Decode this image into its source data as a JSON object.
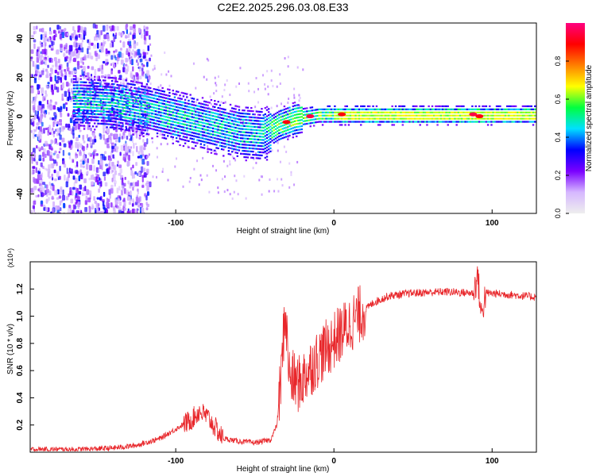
{
  "figure": {
    "title": "C2E2.2025.296.03.08.E33"
  },
  "chart_data": [
    {
      "type": "heatmap",
      "title": "C2E2.2025.296.03.08.E33",
      "xlabel": "Height of straight line (km)",
      "ylabel": "Frequency (Hz)",
      "xlim": [
        -192,
        128
      ],
      "ylim": [
        -50,
        48
      ],
      "x_ticks": [
        -100,
        0,
        100
      ],
      "y_ticks": [
        -40,
        -20,
        0,
        20,
        40
      ],
      "colorbar": {
        "label": "Normalized spectral amplitude",
        "range": [
          0,
          1
        ],
        "ticks": [
          0.0,
          0.2,
          0.4,
          0.6,
          0.8
        ],
        "tick_labels": [
          "0.0",
          "0.2",
          "0.4",
          "0.6",
          "0.8"
        ],
        "colormap": [
          "#eeeeee",
          "#d6b8ff",
          "#7a00ff",
          "#0000ff",
          "#00e0ff",
          "#00ff40",
          "#ffff00",
          "#ff7f00",
          "#ff0000",
          "#ff0080"
        ]
      },
      "ridge_center_hz": [
        [
          -160,
          8
        ],
        [
          -140,
          7
        ],
        [
          -120,
          4
        ],
        [
          -100,
          0
        ],
        [
          -80,
          -4
        ],
        [
          -60,
          -8
        ],
        [
          -45,
          -9
        ],
        [
          -35,
          -4
        ],
        [
          -25,
          -1
        ],
        [
          -10,
          1
        ],
        [
          0,
          1
        ],
        [
          20,
          1
        ],
        [
          60,
          1
        ],
        [
          100,
          1
        ],
        [
          128,
          1
        ]
      ],
      "ridge_peaks": [
        {
          "x": -30,
          "y": -3,
          "amplitude": 0.9
        },
        {
          "x": -15,
          "y": 0,
          "amplitude": 0.95
        },
        {
          "x": 5,
          "y": 1,
          "amplitude": 0.9
        },
        {
          "x": 88,
          "y": 1,
          "amplitude": 0.95
        },
        {
          "x": 92,
          "y": 0,
          "amplitude": 0.9
        }
      ]
    },
    {
      "type": "line",
      "xlabel": "Height of straight line (km)",
      "ylabel": "SNR (10 * v/v)",
      "scale_label": "(x10⁴)",
      "xlim": [
        -192,
        128
      ],
      "ylim": [
        0,
        1.4
      ],
      "x_ticks": [
        -100,
        0,
        100
      ],
      "y_ticks": [
        0.2,
        0.4,
        0.6,
        0.8,
        1.0,
        1.2
      ],
      "y_tick_labels": [
        "0.2",
        "0.4",
        "0.6",
        "0.8",
        "1.0",
        "1.2"
      ],
      "series": [
        {
          "name": "SNR",
          "color": "#e8262a",
          "envelope": [
            [
              -192,
              0.02
            ],
            [
              -160,
              0.02
            ],
            [
              -140,
              0.03
            ],
            [
              -125,
              0.05
            ],
            [
              -110,
              0.1
            ],
            [
              -100,
              0.17
            ],
            [
              -90,
              0.24
            ],
            [
              -85,
              0.3
            ],
            [
              -80,
              0.26
            ],
            [
              -75,
              0.18
            ],
            [
              -70,
              0.1
            ],
            [
              -60,
              0.08
            ],
            [
              -50,
              0.07
            ],
            [
              -40,
              0.09
            ],
            [
              -36,
              0.2
            ],
            [
              -33,
              0.6
            ],
            [
              -31,
              1.05
            ],
            [
              -28,
              0.55
            ],
            [
              -22,
              0.5
            ],
            [
              -15,
              0.62
            ],
            [
              -8,
              0.72
            ],
            [
              0,
              0.82
            ],
            [
              8,
              0.92
            ],
            [
              15,
              1.0
            ],
            [
              25,
              1.1
            ],
            [
              35,
              1.15
            ],
            [
              50,
              1.17
            ],
            [
              70,
              1.18
            ],
            [
              88,
              1.17
            ],
            [
              91,
              1.3
            ],
            [
              93,
              1.0
            ],
            [
              96,
              1.17
            ],
            [
              110,
              1.16
            ],
            [
              128,
              1.14
            ]
          ]
        }
      ]
    }
  ]
}
